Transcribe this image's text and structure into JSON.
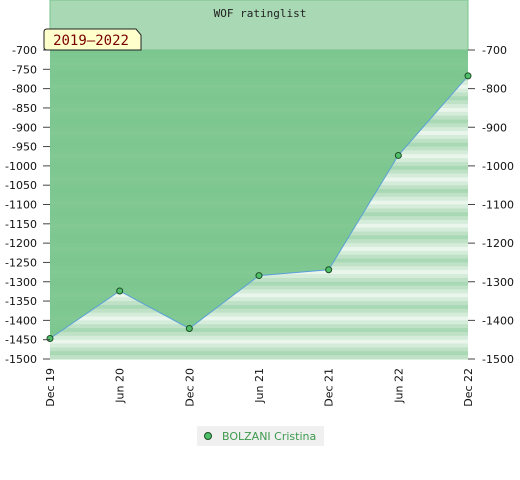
{
  "chart_data": {
    "type": "area",
    "title": "WOF ratinglist",
    "date_range": "2019–2022",
    "x": [
      "Dec 19",
      "Jun 20",
      "Dec 20",
      "Jun 21",
      "Dec 21",
      "Jun 22",
      "Dec 22"
    ],
    "series": [
      {
        "name": "BOLZANI Cristina",
        "values": [
          -1447,
          -1324,
          -1421,
          -1284,
          -1269,
          -973,
          -767
        ]
      }
    ],
    "y_ticks_left": [
      -700,
      -750,
      -800,
      -850,
      -900,
      -950,
      -1000,
      -1050,
      -1100,
      -1150,
      -1200,
      -1250,
      -1300,
      -1350,
      -1400,
      -1450,
      -1500
    ],
    "y_ticks_right": [
      -700,
      -800,
      -900,
      -1000,
      -1100,
      -1200,
      -1300,
      -1400,
      -1500
    ],
    "ylim": [
      -1500,
      -700
    ],
    "legend_position": "bottom-center",
    "colors": {
      "area": "#78c48c",
      "line": "#5aa0d8",
      "marker": "#4fbf6a",
      "band_dark": "#a8d8b4",
      "band_light": "#eaf6ec"
    }
  }
}
